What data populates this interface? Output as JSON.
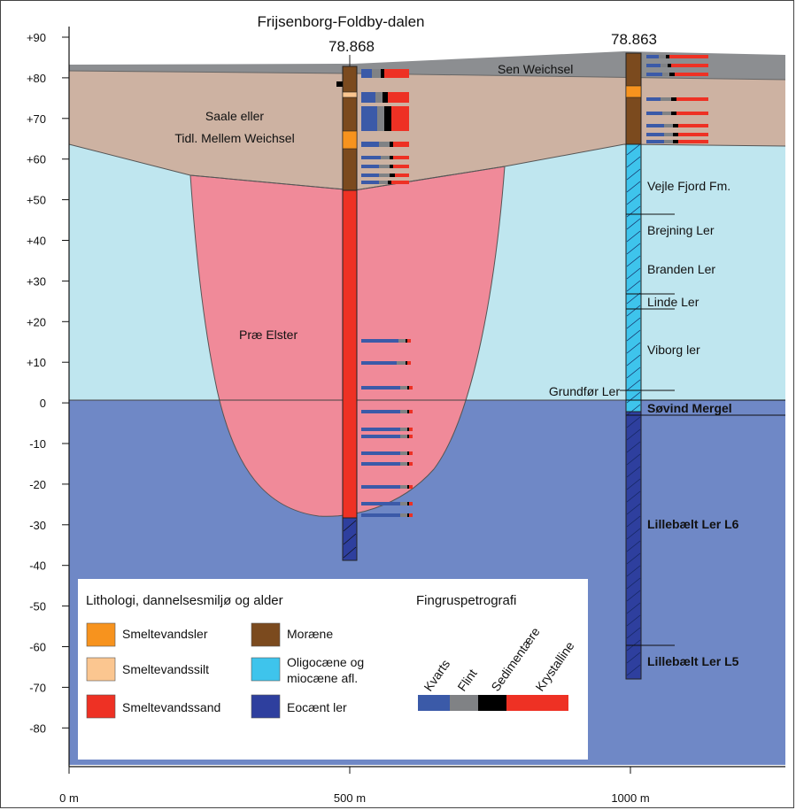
{
  "title": "Frijsenborg-Foldby-dalen",
  "boreholes": [
    {
      "id": "78.868"
    },
    {
      "id": "78.863"
    }
  ],
  "y_axis": {
    "ticks": [
      "+90",
      "+80",
      "+70",
      "+60",
      "+50",
      "+40",
      "+30",
      "+20",
      "+10",
      "0",
      "-10",
      "-20",
      "-30",
      "-40",
      "-50",
      "-60",
      "-70",
      "-80"
    ]
  },
  "x_axis": {
    "ticks": [
      "0 m",
      "500 m",
      "1000 m"
    ]
  },
  "units": {
    "sen_weichsel": "Sen Weichsel",
    "saale_line1": "Saale eller",
    "saale_line2": "Tidl. Mellem Weichsel",
    "prae_elster": "Præ Elster",
    "vejle": "Vejle Fjord Fm.",
    "brejning": "Brejning Ler",
    "branden": "Branden Ler",
    "linde": "Linde Ler",
    "viborg": "Viborg ler",
    "grundfor": "Grundfør Ler",
    "sovind": "Søvind Mergel",
    "l6": "Lillebælt Ler L6",
    "l5": "Lillebælt Ler L5"
  },
  "legend": {
    "heading": "Lithologi, dannelsesmiljø og alder",
    "items": [
      {
        "label": "Smeltevandsler",
        "color": "#f7931e"
      },
      {
        "label": "Smeltevandssilt",
        "color": "#fbc690"
      },
      {
        "label": "Smeltevandssand",
        "color": "#ee3124"
      },
      {
        "label": "Moræne",
        "color": "#7b4a1e"
      },
      {
        "label_line1": "Oligocæne og",
        "label_line2": "miocæne afl.",
        "color": "#3ec4ec"
      },
      {
        "label": "Eocænt ler",
        "color": "#2e3f9e"
      }
    ],
    "petro_heading": "Fingruspetrografi",
    "petro": [
      {
        "label": "Kvarts",
        "color": "#3b5aa8"
      },
      {
        "label": "Flint",
        "color": "#808285"
      },
      {
        "label": "Sedimentære",
        "color": "#000000"
      },
      {
        "label": "Krystalline",
        "color": "#ee3124"
      }
    ]
  },
  "colors": {
    "eocene": "#6f88c6",
    "oligocene": "#bfe6ef",
    "saale": "#cdb2a2",
    "sen_weichsel": "#8c8e91",
    "prae_elster": "#f08a99"
  }
}
